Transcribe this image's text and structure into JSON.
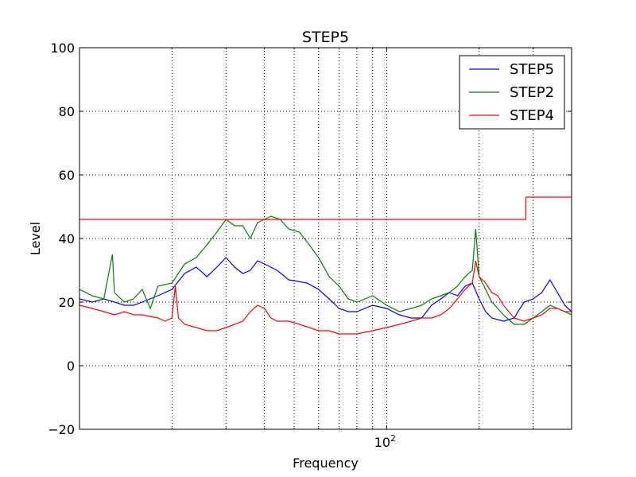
{
  "chart_data": {
    "type": "line",
    "title": "STEP5",
    "xlabel": "Frequency",
    "ylabel": "Level",
    "xscale": "log",
    "xlim": [
      10,
      400
    ],
    "ylim": [
      -20,
      100
    ],
    "yticks": [
      -20,
      0,
      20,
      40,
      60,
      80,
      100
    ],
    "yticklabels": [
      "−20",
      "0",
      "20",
      "40",
      "60",
      "80",
      "100"
    ],
    "xticks": [
      100
    ],
    "xticklabels": [
      "10",
      "2"
    ],
    "grid": true,
    "legend_position": "top-right",
    "series": [
      {
        "name": "STEP5",
        "color": "#0000ff",
        "points": [
          [
            10,
            21
          ],
          [
            11,
            20
          ],
          [
            12,
            21
          ],
          [
            13,
            20
          ],
          [
            14,
            19
          ],
          [
            15,
            19
          ],
          [
            16,
            20
          ],
          [
            18,
            22
          ],
          [
            20,
            24
          ],
          [
            22,
            29
          ],
          [
            24,
            31
          ],
          [
            26,
            28
          ],
          [
            28,
            31
          ],
          [
            30,
            34
          ],
          [
            32,
            31
          ],
          [
            34,
            29
          ],
          [
            36,
            30
          ],
          [
            38,
            33
          ],
          [
            40,
            32
          ],
          [
            44,
            30
          ],
          [
            48,
            27
          ],
          [
            55,
            26
          ],
          [
            60,
            24
          ],
          [
            65,
            21
          ],
          [
            70,
            18
          ],
          [
            75,
            17
          ],
          [
            80,
            17
          ],
          [
            90,
            19
          ],
          [
            100,
            18
          ],
          [
            110,
            16
          ],
          [
            120,
            15
          ],
          [
            130,
            15
          ],
          [
            140,
            19
          ],
          [
            150,
            21
          ],
          [
            160,
            23
          ],
          [
            170,
            22
          ],
          [
            180,
            25
          ],
          [
            190,
            26
          ],
          [
            200,
            21
          ],
          [
            210,
            17
          ],
          [
            220,
            15
          ],
          [
            240,
            14
          ],
          [
            260,
            15
          ],
          [
            280,
            20
          ],
          [
            300,
            21
          ],
          [
            320,
            23
          ],
          [
            340,
            27
          ],
          [
            360,
            23
          ],
          [
            380,
            19
          ],
          [
            400,
            17
          ]
        ]
      },
      {
        "name": "STEP2",
        "color": "#008000",
        "points": [
          [
            10,
            24
          ],
          [
            11,
            22
          ],
          [
            12,
            21
          ],
          [
            12.8,
            35
          ],
          [
            13,
            23
          ],
          [
            14,
            20
          ],
          [
            15,
            21
          ],
          [
            16,
            24
          ],
          [
            17,
            18
          ],
          [
            18,
            25
          ],
          [
            20,
            26
          ],
          [
            22,
            32
          ],
          [
            24,
            34
          ],
          [
            26,
            38
          ],
          [
            28,
            42
          ],
          [
            30,
            46
          ],
          [
            32,
            44
          ],
          [
            34,
            44
          ],
          [
            36,
            40
          ],
          [
            38,
            45
          ],
          [
            40,
            46
          ],
          [
            42,
            47
          ],
          [
            45,
            46
          ],
          [
            48,
            43
          ],
          [
            52,
            42
          ],
          [
            56,
            38
          ],
          [
            60,
            34
          ],
          [
            65,
            28
          ],
          [
            70,
            25
          ],
          [
            75,
            21
          ],
          [
            80,
            20
          ],
          [
            90,
            22
          ],
          [
            100,
            19
          ],
          [
            110,
            17
          ],
          [
            120,
            18
          ],
          [
            130,
            19
          ],
          [
            140,
            21
          ],
          [
            150,
            22
          ],
          [
            160,
            23
          ],
          [
            170,
            25
          ],
          [
            180,
            28
          ],
          [
            190,
            30
          ],
          [
            195,
            43
          ],
          [
            200,
            28
          ],
          [
            210,
            24
          ],
          [
            220,
            20
          ],
          [
            240,
            16
          ],
          [
            260,
            13
          ],
          [
            280,
            13
          ],
          [
            300,
            15
          ],
          [
            320,
            17
          ],
          [
            340,
            19
          ],
          [
            360,
            18
          ],
          [
            380,
            17
          ],
          [
            400,
            16
          ]
        ]
      },
      {
        "name": "STEP4",
        "color": "#ff0000",
        "points": [
          [
            10,
            46
          ],
          [
            284,
            46
          ],
          [
            284,
            53
          ],
          [
            400,
            53
          ]
        ],
        "points2": [
          [
            10,
            19
          ],
          [
            11,
            18
          ],
          [
            12,
            17
          ],
          [
            13,
            16
          ],
          [
            14,
            17
          ],
          [
            15,
            16
          ],
          [
            16,
            16
          ],
          [
            18,
            15
          ],
          [
            19,
            14
          ],
          [
            20,
            15
          ],
          [
            20.5,
            25
          ],
          [
            21,
            15
          ],
          [
            22,
            13
          ],
          [
            24,
            12
          ],
          [
            26,
            11
          ],
          [
            28,
            11
          ],
          [
            30,
            12
          ],
          [
            32,
            13
          ],
          [
            34,
            14
          ],
          [
            36,
            17
          ],
          [
            38,
            19
          ],
          [
            40,
            18
          ],
          [
            42,
            15
          ],
          [
            44,
            14
          ],
          [
            48,
            14
          ],
          [
            52,
            13
          ],
          [
            56,
            12
          ],
          [
            60,
            11
          ],
          [
            65,
            11
          ],
          [
            70,
            10
          ],
          [
            75,
            10
          ],
          [
            80,
            10
          ],
          [
            90,
            11
          ],
          [
            100,
            12
          ],
          [
            110,
            13
          ],
          [
            120,
            14
          ],
          [
            130,
            15
          ],
          [
            140,
            15
          ],
          [
            150,
            16
          ],
          [
            160,
            18
          ],
          [
            170,
            21
          ],
          [
            180,
            24
          ],
          [
            190,
            26
          ],
          [
            195,
            33
          ],
          [
            200,
            28
          ],
          [
            210,
            26
          ],
          [
            220,
            23
          ],
          [
            230,
            22
          ],
          [
            240,
            19
          ],
          [
            250,
            17
          ],
          [
            260,
            15
          ],
          [
            280,
            14
          ],
          [
            300,
            15
          ],
          [
            320,
            16
          ],
          [
            340,
            18
          ],
          [
            360,
            18
          ],
          [
            380,
            17
          ],
          [
            400,
            17
          ]
        ]
      }
    ]
  }
}
